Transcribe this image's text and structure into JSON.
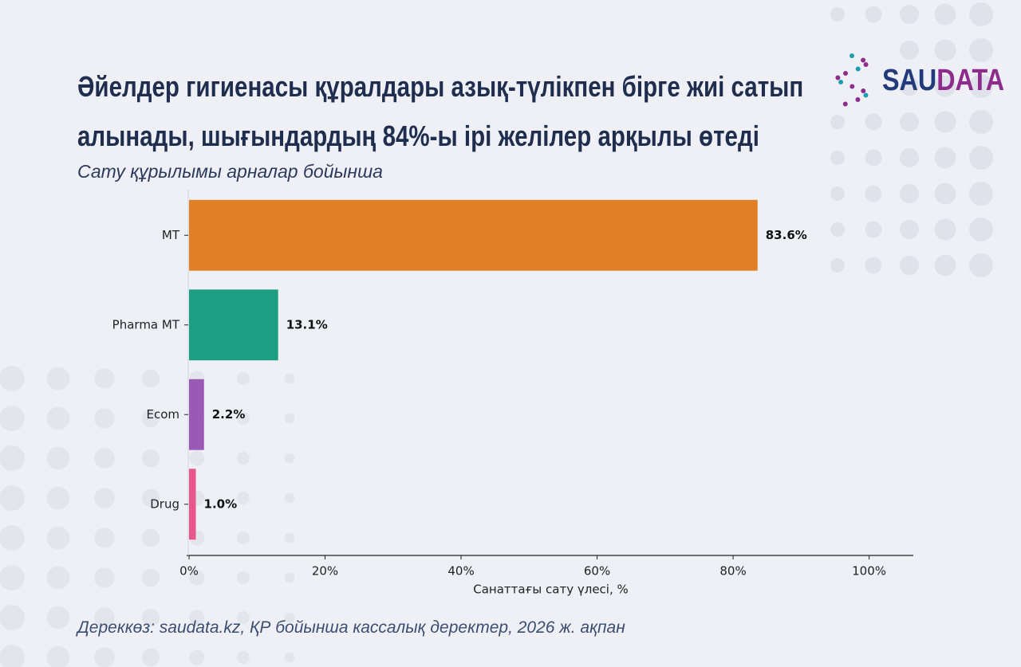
{
  "chart_data": {
    "type": "barh",
    "title": "Әйелдер гигиенасы құралдары азық-түлікпен бірге жиі сатып алынады, шығындардың 84%-ы ірі желілер арқылы өтеді",
    "subtitle": "Сату құрылымы арналар бойынша",
    "categories": [
      "MT",
      "Pharma MT",
      "Ecom",
      "Drug"
    ],
    "values": [
      83.6,
      13.1,
      2.2,
      1.0
    ],
    "value_labels": [
      "83.6%",
      "13.1%",
      "2.2%",
      "1.0%"
    ],
    "colors": [
      "#e07f26",
      "#1c9e82",
      "#9b59b6",
      "#e8578a"
    ],
    "xlabel": "Санаттағы сату үлесі, %",
    "xlim": [
      0,
      106.5
    ],
    "xticks": [
      {
        "value": 0,
        "label": "0%"
      },
      {
        "value": 20,
        "label": "20%"
      },
      {
        "value": 40,
        "label": "40%"
      },
      {
        "value": 60,
        "label": "60%"
      },
      {
        "value": 80,
        "label": "80%"
      },
      {
        "value": 100,
        "label": "100%"
      }
    ],
    "source": "Дереккөз: saudata.kz, ҚР бойынша кассалық деректер, 2026 ж. ақпан"
  },
  "logo": {
    "first": "SAU",
    "second": "DATA"
  }
}
